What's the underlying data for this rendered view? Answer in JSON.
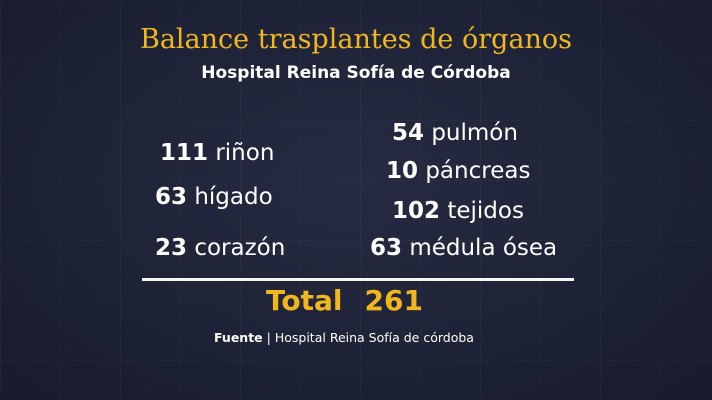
{
  "title": "Balance trasplantes de órganos",
  "subtitle": "Hospital Reina Sofía de Córdoba",
  "left_items": [
    {
      "value": "111",
      "label": "riñon"
    },
    {
      "value": "63",
      "label": "hígado"
    },
    {
      "value": "23",
      "label": "corazón"
    }
  ],
  "right_items": [
    {
      "value": "54",
      "label": "pulmón"
    },
    {
      "value": "10",
      "label": "páncreas"
    },
    {
      "value": "102",
      "label": "tejidos"
    },
    {
      "value": "63",
      "label": "médula ósea"
    }
  ],
  "total": {
    "label": "Total",
    "value": "261"
  },
  "source": {
    "label": "Fuente",
    "separator": "|",
    "text": "Hospital Reina Sofía de córdoba"
  },
  "colors": {
    "accent": "#f2b71c",
    "background": "#1f2438",
    "text": "#ffffff"
  }
}
